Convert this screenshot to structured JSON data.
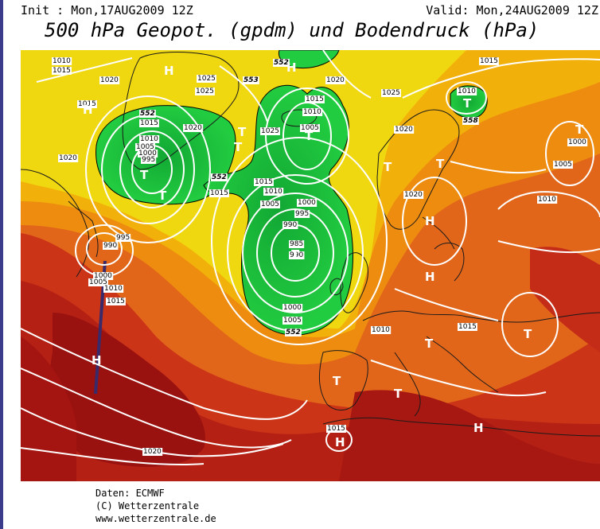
{
  "header": {
    "init": "Init : Mon,17AUG2009 12Z",
    "valid": "Valid: Mon,24AUG2009 12Z",
    "title": "500 hPa Geopot. (gpdm) und Bodendruck (hPa)"
  },
  "footer": {
    "line1": "Daten: ECMWF",
    "line2": "(C) Wetterzentrale",
    "line3": "www.wetterzentrale.de"
  },
  "map": {
    "colors": {
      "deep_red": "#a01010",
      "red": "#c8281a",
      "orange_red": "#dc4a14",
      "orange": "#e8780c",
      "orange_light": "#f0a008",
      "yellow": "#f0e010",
      "green": "#1ec83c",
      "green_dark": "#10a030",
      "isobar": "#ffffff",
      "coast": "#1a1a1a",
      "track": "#3a2a6a"
    },
    "isobar_labels": [
      {
        "id": "i1",
        "text": "1010"
      },
      {
        "id": "i2",
        "text": "1015"
      },
      {
        "id": "i3",
        "text": "1015"
      },
      {
        "id": "i4",
        "text": "1020"
      },
      {
        "id": "i5",
        "text": "1025"
      },
      {
        "id": "i6",
        "text": "1025"
      },
      {
        "id": "i7",
        "text": "1015"
      },
      {
        "id": "i8",
        "text": "1010"
      },
      {
        "id": "i9",
        "text": "1005"
      },
      {
        "id": "i10",
        "text": "1000"
      },
      {
        "id": "i11",
        "text": "995"
      },
      {
        "id": "i12",
        "text": "1020"
      },
      {
        "id": "i13",
        "text": "1020"
      },
      {
        "id": "i14",
        "text": "1015"
      },
      {
        "id": "i15",
        "text": "995"
      },
      {
        "id": "i16",
        "text": "990"
      },
      {
        "id": "i17",
        "text": "1000"
      },
      {
        "id": "i18",
        "text": "1005"
      },
      {
        "id": "i19",
        "text": "1010"
      },
      {
        "id": "i20",
        "text": "1015"
      },
      {
        "id": "i21",
        "text": "1020"
      },
      {
        "id": "i22",
        "text": "1025"
      },
      {
        "id": "i23",
        "text": "1015"
      },
      {
        "id": "i24",
        "text": "1010"
      },
      {
        "id": "i25",
        "text": "1005"
      },
      {
        "id": "i26",
        "text": "1015"
      },
      {
        "id": "i27",
        "text": "1010"
      },
      {
        "id": "i28",
        "text": "1005"
      },
      {
        "id": "i29",
        "text": "1000"
      },
      {
        "id": "i30",
        "text": "995"
      },
      {
        "id": "i31",
        "text": "990"
      },
      {
        "id": "i32",
        "text": "985"
      },
      {
        "id": "i33",
        "text": "990"
      },
      {
        "id": "i34",
        "text": "1000"
      },
      {
        "id": "i35",
        "text": "1005"
      },
      {
        "id": "i36",
        "text": "1020"
      },
      {
        "id": "i37",
        "text": "1025"
      },
      {
        "id": "i38",
        "text": "1010"
      },
      {
        "id": "i39",
        "text": "1015"
      },
      {
        "id": "i40",
        "text": "1020"
      },
      {
        "id": "i41",
        "text": "1010"
      },
      {
        "id": "i42",
        "text": "1015"
      },
      {
        "id": "i43",
        "text": "1000"
      },
      {
        "id": "i44",
        "text": "1005"
      },
      {
        "id": "i45",
        "text": "1010"
      },
      {
        "id": "i46",
        "text": "1020"
      },
      {
        "id": "i47",
        "text": "1010"
      },
      {
        "id": "i48",
        "text": "1015"
      },
      {
        "id": "i49",
        "text": "1015"
      },
      {
        "id": "i50",
        "text": "1020"
      },
      {
        "id": "i51",
        "text": "1025"
      },
      {
        "id": "i52",
        "text": "1020"
      }
    ],
    "geopot_labels": [
      {
        "id": "g1",
        "text": "552"
      },
      {
        "id": "g2",
        "text": "552"
      },
      {
        "id": "g3",
        "text": "553"
      },
      {
        "id": "g4",
        "text": "552"
      },
      {
        "id": "g5",
        "text": "558"
      },
      {
        "id": "g6",
        "text": "552"
      }
    ],
    "pressure_symbols": [
      {
        "id": "s1",
        "text": "H"
      },
      {
        "id": "s2",
        "text": "H"
      },
      {
        "id": "s3",
        "text": "H"
      },
      {
        "id": "s4",
        "text": "T"
      },
      {
        "id": "s5",
        "text": "T"
      },
      {
        "id": "s6",
        "text": "T"
      },
      {
        "id": "s7",
        "text": "T"
      },
      {
        "id": "s8",
        "text": "T"
      },
      {
        "id": "s9",
        "text": "T"
      },
      {
        "id": "s10",
        "text": "T"
      },
      {
        "id": "s11",
        "text": "T"
      },
      {
        "id": "s12",
        "text": "T"
      },
      {
        "id": "s13",
        "text": "T"
      },
      {
        "id": "s14",
        "text": "H"
      },
      {
        "id": "s15",
        "text": "H"
      },
      {
        "id": "s16",
        "text": "T"
      },
      {
        "id": "s17",
        "text": "T"
      },
      {
        "id": "s18",
        "text": "T"
      },
      {
        "id": "s19",
        "text": "T"
      },
      {
        "id": "s20",
        "text": "T"
      },
      {
        "id": "s21",
        "text": "H"
      },
      {
        "id": "s22",
        "text": "H"
      },
      {
        "id": "s23",
        "text": "T"
      },
      {
        "id": "s24",
        "text": "H"
      },
      {
        "id": "s25",
        "text": "H"
      }
    ]
  }
}
